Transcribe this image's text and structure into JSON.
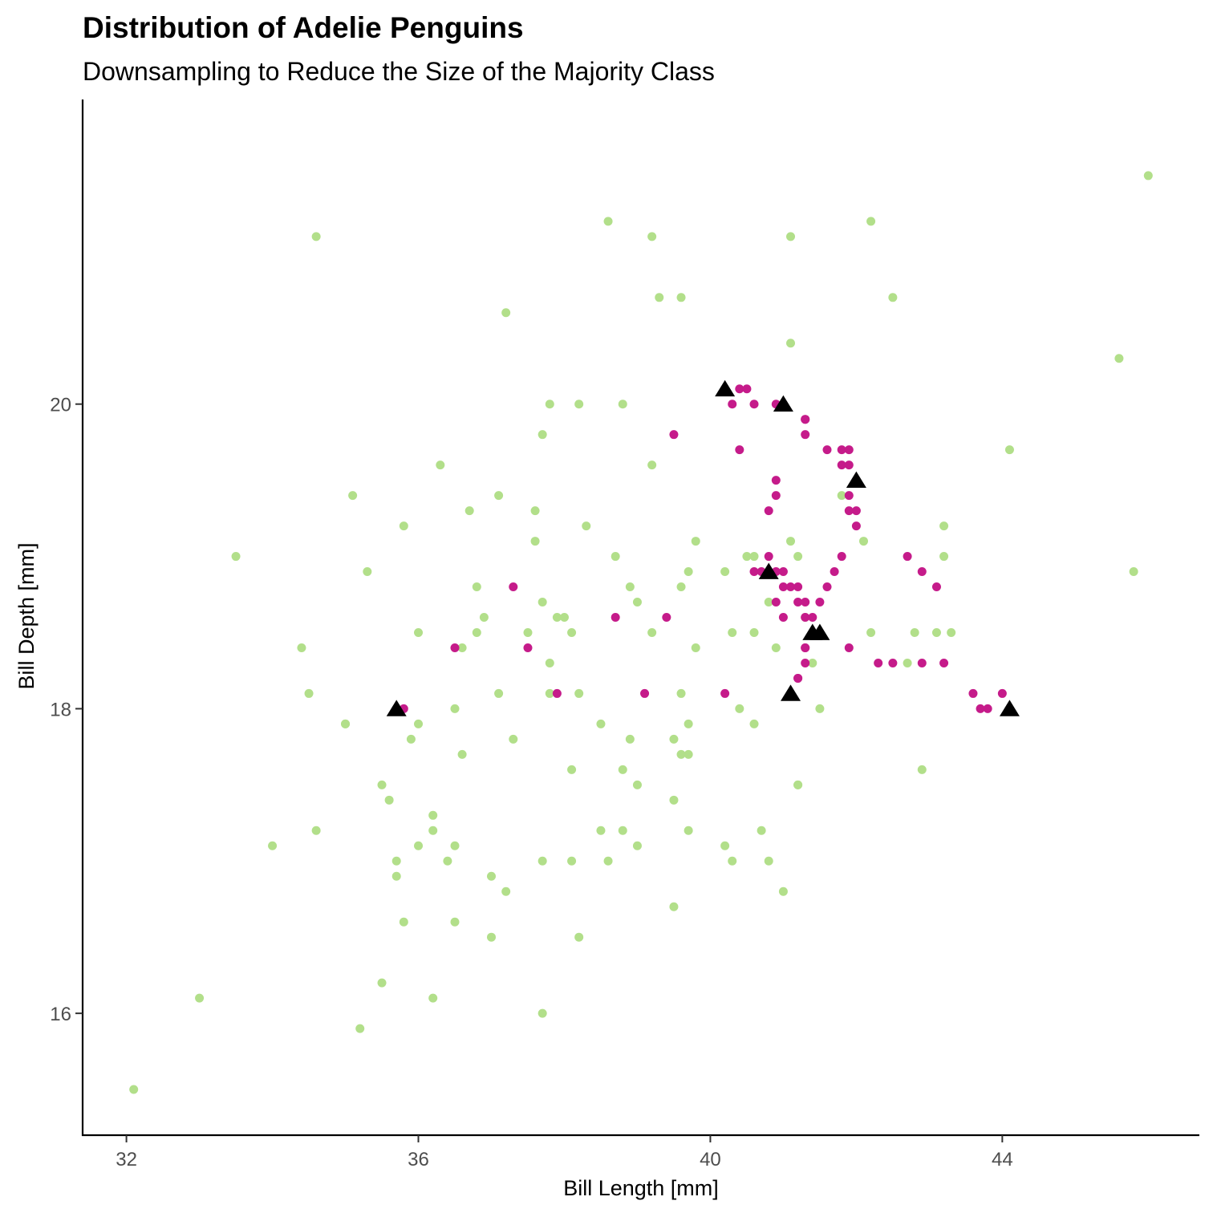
{
  "chart_data": {
    "type": "scatter",
    "title": "Distribution of Adelie Penguins",
    "subtitle": "Downsampling to Reduce the Size of the Majority Class",
    "xlabel": "Bill Length [mm]",
    "ylabel": "Bill Depth [mm]",
    "xlim": [
      31.4,
      46.7
    ],
    "ylim": [
      15.2,
      22.0
    ],
    "xticks": [
      32,
      36,
      40,
      44
    ],
    "yticks": [
      16,
      18,
      20
    ],
    "grid": false,
    "legend": "none",
    "colors": {
      "majority": "#b2df8a",
      "synthetic": "#c51b8a",
      "minority": "#000000"
    },
    "series": [
      {
        "marker": "circle",
        "color": "#b2df8a",
        "points": [
          [
            32.1,
            15.5
          ],
          [
            33.0,
            16.1
          ],
          [
            33.5,
            19.0
          ],
          [
            34.0,
            17.1
          ],
          [
            34.4,
            18.4
          ],
          [
            34.5,
            18.1
          ],
          [
            34.6,
            21.1
          ],
          [
            34.6,
            17.2
          ],
          [
            35.0,
            17.9
          ],
          [
            35.0,
            17.9
          ],
          [
            35.1,
            19.4
          ],
          [
            35.3,
            18.9
          ],
          [
            35.2,
            15.9
          ],
          [
            35.5,
            16.2
          ],
          [
            35.5,
            17.5
          ],
          [
            35.6,
            17.4
          ],
          [
            35.7,
            17.0
          ],
          [
            35.7,
            16.9
          ],
          [
            35.8,
            19.2
          ],
          [
            35.8,
            16.6
          ],
          [
            35.9,
            17.8
          ],
          [
            36.0,
            18.5
          ],
          [
            36.0,
            17.9
          ],
          [
            36.0,
            17.1
          ],
          [
            36.2,
            17.3
          ],
          [
            36.2,
            17.2
          ],
          [
            36.2,
            16.1
          ],
          [
            36.3,
            19.6
          ],
          [
            36.4,
            17.0
          ],
          [
            36.5,
            17.1
          ],
          [
            36.5,
            18.0
          ],
          [
            36.5,
            16.6
          ],
          [
            36.6,
            18.4
          ],
          [
            36.6,
            17.7
          ],
          [
            36.7,
            19.3
          ],
          [
            36.8,
            18.8
          ],
          [
            36.8,
            18.5
          ],
          [
            36.9,
            18.6
          ],
          [
            37.0,
            16.5
          ],
          [
            37.0,
            16.9
          ],
          [
            37.1,
            19.4
          ],
          [
            37.1,
            18.1
          ],
          [
            37.2,
            20.6
          ],
          [
            37.2,
            16.8
          ],
          [
            37.3,
            17.8
          ],
          [
            37.5,
            18.5
          ],
          [
            37.6,
            19.1
          ],
          [
            37.6,
            19.3
          ],
          [
            37.7,
            17.0
          ],
          [
            37.7,
            16.0
          ],
          [
            37.7,
            18.7
          ],
          [
            37.7,
            19.8
          ],
          [
            37.8,
            20.0
          ],
          [
            37.8,
            18.3
          ],
          [
            37.8,
            18.1
          ],
          [
            37.9,
            18.6
          ],
          [
            38.0,
            18.6
          ],
          [
            38.1,
            17.6
          ],
          [
            38.1,
            17.0
          ],
          [
            38.1,
            18.5
          ],
          [
            38.2,
            18.1
          ],
          [
            38.2,
            20.0
          ],
          [
            38.2,
            16.5
          ],
          [
            38.3,
            19.2
          ],
          [
            38.5,
            17.9
          ],
          [
            38.5,
            17.2
          ],
          [
            38.6,
            21.2
          ],
          [
            38.6,
            17.0
          ],
          [
            38.7,
            19.0
          ],
          [
            38.8,
            20.0
          ],
          [
            38.8,
            17.6
          ],
          [
            38.8,
            17.2
          ],
          [
            38.9,
            18.8
          ],
          [
            38.9,
            17.8
          ],
          [
            39.0,
            18.7
          ],
          [
            39.0,
            17.5
          ],
          [
            39.0,
            17.1
          ],
          [
            39.2,
            21.1
          ],
          [
            39.2,
            19.6
          ],
          [
            39.3,
            20.7
          ],
          [
            39.2,
            18.5
          ],
          [
            39.5,
            17.8
          ],
          [
            39.5,
            17.4
          ],
          [
            39.5,
            16.7
          ],
          [
            39.6,
            18.8
          ],
          [
            39.6,
            18.1
          ],
          [
            39.6,
            17.7
          ],
          [
            39.6,
            20.7
          ],
          [
            39.7,
            18.9
          ],
          [
            39.7,
            17.2
          ],
          [
            39.7,
            17.7
          ],
          [
            39.7,
            17.9
          ],
          [
            39.8,
            19.1
          ],
          [
            39.8,
            18.4
          ],
          [
            40.2,
            18.9
          ],
          [
            40.2,
            17.1
          ],
          [
            40.3,
            17.0
          ],
          [
            40.3,
            18.5
          ],
          [
            40.4,
            18.0
          ],
          [
            40.5,
            19.0
          ],
          [
            40.6,
            19.0
          ],
          [
            40.6,
            18.5
          ],
          [
            40.6,
            17.9
          ],
          [
            40.7,
            17.2
          ],
          [
            40.8,
            17.0
          ],
          [
            40.8,
            18.7
          ],
          [
            40.9,
            18.4
          ],
          [
            41.0,
            16.8
          ],
          [
            41.1,
            19.1
          ],
          [
            41.1,
            20.4
          ],
          [
            41.1,
            21.1
          ],
          [
            41.2,
            19.0
          ],
          [
            41.2,
            17.5
          ],
          [
            41.2,
            17.5
          ],
          [
            41.3,
            18.6
          ],
          [
            41.4,
            18.3
          ],
          [
            41.5,
            18.0
          ],
          [
            41.8,
            19.4
          ],
          [
            42.0,
            19.5
          ],
          [
            42.1,
            19.1
          ],
          [
            42.2,
            21.2
          ],
          [
            42.2,
            18.5
          ],
          [
            42.5,
            20.7
          ],
          [
            42.7,
            18.3
          ],
          [
            42.8,
            18.5
          ],
          [
            42.9,
            17.6
          ],
          [
            43.1,
            18.5
          ],
          [
            43.2,
            19.2
          ],
          [
            43.2,
            19.0
          ],
          [
            43.3,
            18.5
          ],
          [
            44.1,
            19.7
          ],
          [
            45.6,
            20.3
          ],
          [
            45.8,
            18.9
          ],
          [
            46.0,
            21.5
          ]
        ]
      },
      {
        "marker": "circle",
        "color": "#c51b8a",
        "points": [
          [
            35.8,
            18.0
          ],
          [
            36.5,
            18.4
          ],
          [
            37.3,
            18.8
          ],
          [
            37.5,
            18.4
          ],
          [
            37.9,
            18.1
          ],
          [
            38.7,
            18.6
          ],
          [
            39.1,
            18.1
          ],
          [
            39.4,
            18.6
          ],
          [
            39.5,
            19.8
          ],
          [
            40.2,
            18.1
          ],
          [
            40.2,
            20.1
          ],
          [
            40.3,
            20.0
          ],
          [
            40.4,
            20.1
          ],
          [
            40.6,
            20.0
          ],
          [
            40.5,
            20.1
          ],
          [
            40.6,
            18.9
          ],
          [
            40.7,
            18.9
          ],
          [
            40.8,
            19.0
          ],
          [
            40.9,
            20.0
          ],
          [
            41.0,
            20.0
          ],
          [
            40.4,
            19.7
          ],
          [
            40.9,
            19.5
          ],
          [
            40.9,
            19.4
          ],
          [
            40.8,
            19.3
          ],
          [
            40.9,
            18.9
          ],
          [
            40.9,
            18.7
          ],
          [
            41.0,
            18.9
          ],
          [
            41.0,
            18.8
          ],
          [
            41.0,
            18.6
          ],
          [
            41.1,
            18.8
          ],
          [
            41.2,
            18.8
          ],
          [
            41.2,
            18.7
          ],
          [
            41.3,
            18.7
          ],
          [
            41.3,
            18.6
          ],
          [
            41.4,
            18.5
          ],
          [
            41.4,
            18.6
          ],
          [
            41.5,
            18.5
          ],
          [
            41.3,
            18.4
          ],
          [
            41.3,
            18.3
          ],
          [
            41.2,
            18.2
          ],
          [
            41.2,
            18.2
          ],
          [
            41.3,
            18.4
          ],
          [
            41.4,
            18.5
          ],
          [
            41.5,
            18.7
          ],
          [
            41.5,
            18.5
          ],
          [
            41.6,
            18.8
          ],
          [
            41.7,
            18.9
          ],
          [
            41.8,
            19.0
          ],
          [
            41.3,
            19.9
          ],
          [
            41.3,
            19.9
          ],
          [
            41.3,
            19.8
          ],
          [
            41.6,
            19.7
          ],
          [
            41.8,
            19.6
          ],
          [
            41.8,
            19.7
          ],
          [
            41.9,
            19.7
          ],
          [
            41.9,
            19.6
          ],
          [
            41.9,
            19.4
          ],
          [
            42.0,
            19.3
          ],
          [
            41.9,
            19.3
          ],
          [
            42.0,
            19.2
          ],
          [
            42.0,
            19.5
          ],
          [
            41.9,
            18.4
          ],
          [
            42.3,
            18.3
          ],
          [
            42.5,
            18.3
          ],
          [
            42.7,
            19.0
          ],
          [
            42.9,
            18.9
          ],
          [
            43.1,
            18.8
          ],
          [
            42.9,
            18.3
          ],
          [
            43.2,
            18.3
          ],
          [
            43.6,
            18.1
          ],
          [
            43.7,
            18.0
          ],
          [
            43.8,
            18.0
          ],
          [
            44.0,
            18.1
          ]
        ]
      },
      {
        "marker": "triangle",
        "color": "#000000",
        "points": [
          [
            35.7,
            18.0
          ],
          [
            40.2,
            20.1
          ],
          [
            41.0,
            20.0
          ],
          [
            40.8,
            18.9
          ],
          [
            41.4,
            18.5
          ],
          [
            41.5,
            18.5
          ],
          [
            41.1,
            18.1
          ],
          [
            42.0,
            19.5
          ],
          [
            44.1,
            18.0
          ]
        ]
      }
    ]
  }
}
